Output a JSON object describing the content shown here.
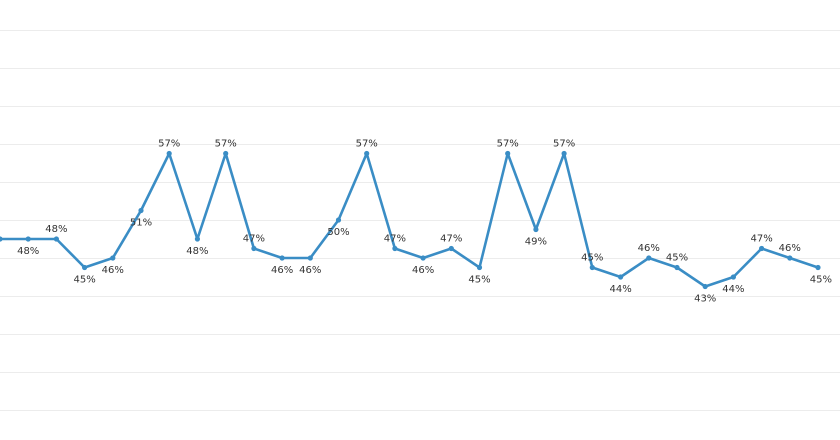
{
  "chart_data": {
    "type": "line",
    "title": "",
    "xlabel": "",
    "ylabel": "",
    "grid": true,
    "legend": "none",
    "ylim": [
      30,
      70
    ],
    "value_suffix": "%",
    "line_color": "#3a8dc5",
    "series": [
      {
        "values": [
          48,
          48,
          48,
          45,
          46,
          51,
          57,
          48,
          57,
          47,
          46,
          46,
          50,
          57,
          47,
          46,
          47,
          45,
          57,
          49,
          57,
          45,
          44,
          46,
          45,
          43,
          44,
          47,
          46,
          45
        ],
        "labels": [
          "",
          "48%",
          "48%",
          "45%",
          "46%",
          "51%",
          "57%",
          "48%",
          "57%",
          "47%",
          "46%",
          "46%",
          "50%",
          "57%",
          "47%",
          "46%",
          "47%",
          "45%",
          "57%",
          "49%",
          "57%",
          "45%",
          "44%",
          "46%",
          "45%",
          "43%",
          "44%",
          "47%",
          "46%",
          "45%"
        ]
      }
    ]
  }
}
